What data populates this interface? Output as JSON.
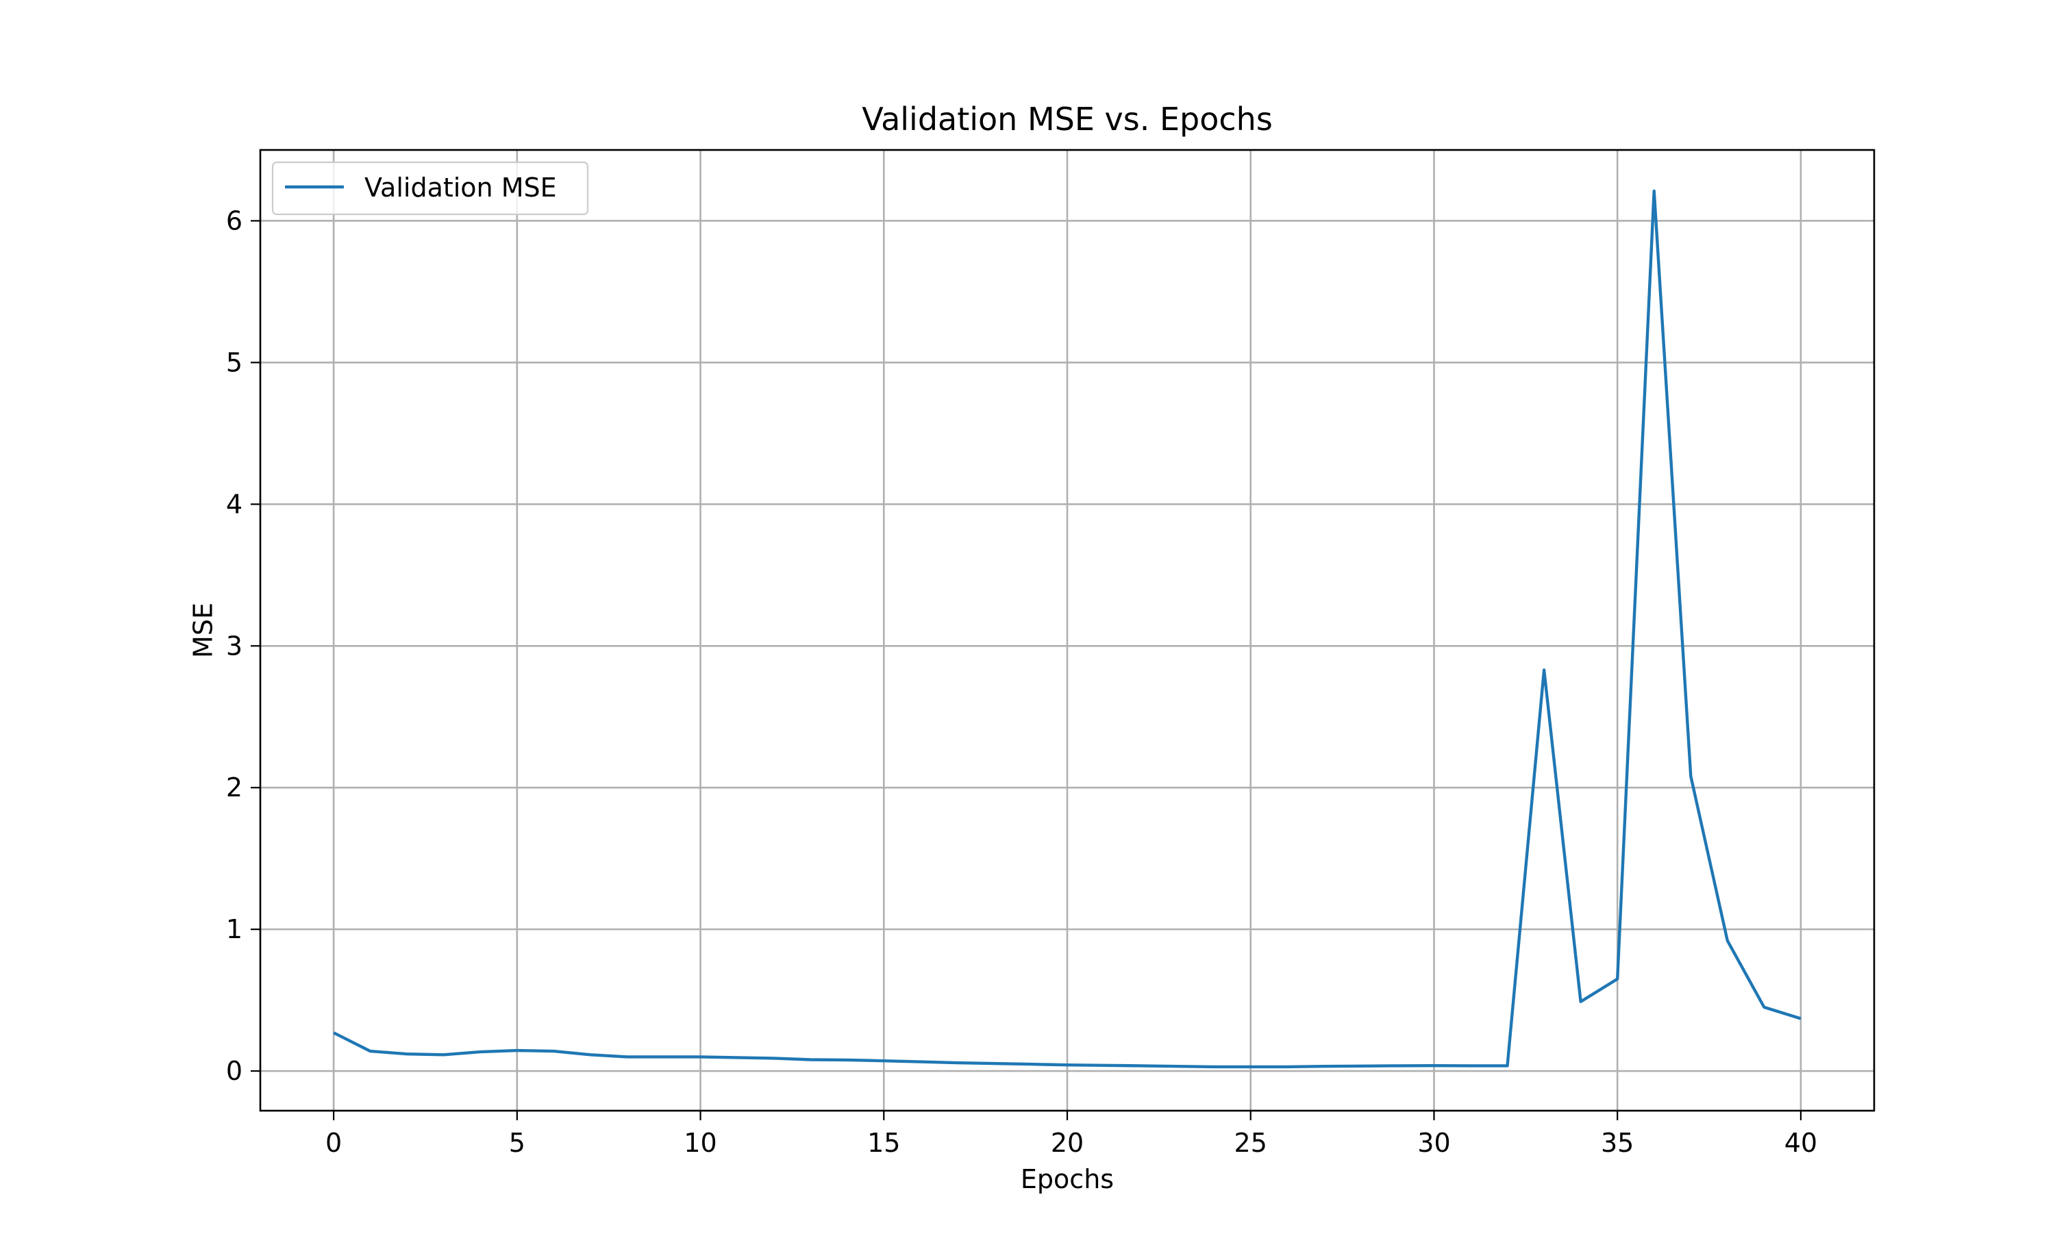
{
  "chart_data": {
    "type": "line",
    "title": "Validation MSE vs. Epochs",
    "xlabel": "Epochs",
    "ylabel": "MSE",
    "xlim": [
      -2,
      42
    ],
    "ylim": [
      -0.28,
      6.5
    ],
    "xticks": [
      0,
      5,
      10,
      15,
      20,
      25,
      30,
      35,
      40
    ],
    "yticks": [
      0,
      1,
      2,
      3,
      4,
      5,
      6
    ],
    "grid": true,
    "legend_position": "upper-left",
    "colors": {
      "series": "#1f77b4",
      "grid": "#b0b0b0"
    },
    "series": [
      {
        "name": "Validation MSE",
        "x": [
          0,
          1,
          2,
          3,
          4,
          5,
          6,
          7,
          8,
          9,
          10,
          11,
          12,
          13,
          14,
          15,
          16,
          17,
          18,
          19,
          20,
          21,
          22,
          23,
          24,
          25,
          26,
          27,
          28,
          29,
          30,
          31,
          32,
          33,
          34,
          35,
          36,
          37,
          38,
          39,
          40
        ],
        "values": [
          0.27,
          0.14,
          0.12,
          0.115,
          0.135,
          0.145,
          0.14,
          0.115,
          0.1,
          0.1,
          0.1,
          0.095,
          0.09,
          0.08,
          0.078,
          0.072,
          0.065,
          0.058,
          0.053,
          0.048,
          0.043,
          0.04,
          0.037,
          0.033,
          0.03,
          0.03,
          0.03,
          0.033,
          0.035,
          0.037,
          0.038,
          0.037,
          0.037,
          2.83,
          0.49,
          0.65,
          6.21,
          2.08,
          0.92,
          0.45,
          0.37
        ]
      }
    ]
  }
}
